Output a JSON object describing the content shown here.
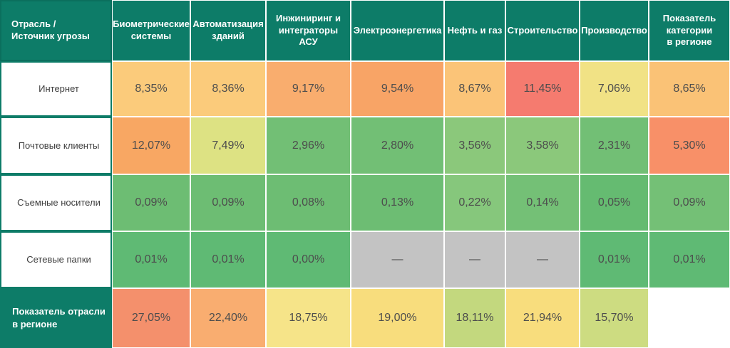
{
  "colors": {
    "header_bg": "#0D7C68",
    "header_text": "#FFFFFF",
    "grid_line": "#FFFFFF",
    "na_bg": "#C3C3C3",
    "label_text": "#3D3D3D",
    "value_text": "#4D4D4D"
  },
  "table": {
    "corner": "Отрасль /\nИсточник угрозы",
    "col_headers": [
      "Биометрические\nсистемы",
      "Автоматизация\nзданий",
      "Инжиниринг и\nинтеграторы АСУ",
      "Электроэнергетика",
      "Нефть и газ",
      "Строительство",
      "Производство",
      "Показатель\nкатегории\nв регионе"
    ],
    "rows": [
      {
        "label": "Интернет",
        "cells": [
          {
            "v": "8,35%",
            "bg": "#FBCB7B"
          },
          {
            "v": "8,36%",
            "bg": "#FBCB7B"
          },
          {
            "v": "9,17%",
            "bg": "#F9AD6E"
          },
          {
            "v": "9,54%",
            "bg": "#F8A466"
          },
          {
            "v": "8,67%",
            "bg": "#FBC478"
          },
          {
            "v": "11,45%",
            "bg": "#F57B6F"
          },
          {
            "v": "7,06%",
            "bg": "#F1E285"
          },
          {
            "v": "8,65%",
            "bg": "#FAC276"
          }
        ]
      },
      {
        "label": "Почтовые клиенты",
        "cells": [
          {
            "v": "12,07%",
            "bg": "#F8A763"
          },
          {
            "v": "7,49%",
            "bg": "#DDE283"
          },
          {
            "v": "2,96%",
            "bg": "#72BF75"
          },
          {
            "v": "2,80%",
            "bg": "#72BF75"
          },
          {
            "v": "3,56%",
            "bg": "#8BC87B"
          },
          {
            "v": "3,58%",
            "bg": "#8BC87B"
          },
          {
            "v": "2,31%",
            "bg": "#72BF75"
          },
          {
            "v": "5,30%",
            "bg": "#F89068"
          }
        ]
      },
      {
        "label": "Съемные носители",
        "cells": [
          {
            "v": "0,09%",
            "bg": "#6DBD73"
          },
          {
            "v": "0,09%",
            "bg": "#6DBD73"
          },
          {
            "v": "0,08%",
            "bg": "#6DBD73"
          },
          {
            "v": "0,13%",
            "bg": "#6DBD73"
          },
          {
            "v": "0,22%",
            "bg": "#86C77C"
          },
          {
            "v": "0,14%",
            "bg": "#74C076"
          },
          {
            "v": "0,05%",
            "bg": "#65BB71"
          },
          {
            "v": "0,09%",
            "bg": "#74C076"
          }
        ]
      },
      {
        "label": "Сетевые папки",
        "cells": [
          {
            "v": "0,01%",
            "bg": "#5FBA74"
          },
          {
            "v": "0,01%",
            "bg": "#5FBA74"
          },
          {
            "v": "0,00%",
            "bg": "#5FBA74"
          },
          {
            "v": "—",
            "bg": "#C3C3C3"
          },
          {
            "v": "—",
            "bg": "#C3C3C3"
          },
          {
            "v": "—",
            "bg": "#C3C3C3"
          },
          {
            "v": "0,01%",
            "bg": "#5FBA74"
          },
          {
            "v": "0,01%",
            "bg": "#5FBA74"
          }
        ]
      }
    ],
    "footer": {
      "label": "Показатель отрасли\nв регионе",
      "cells": [
        {
          "v": "27,05%",
          "bg": "#F4906C"
        },
        {
          "v": "22,40%",
          "bg": "#F9AD70"
        },
        {
          "v": "18,75%",
          "bg": "#F6E489"
        },
        {
          "v": "19,00%",
          "bg": "#F8DD7D"
        },
        {
          "v": "18,11%",
          "bg": "#C3D87E"
        },
        {
          "v": "21,94%",
          "bg": "#F8DD7D"
        },
        {
          "v": "15,70%",
          "bg": "#CDDC81"
        },
        {
          "v": "",
          "bg": "#FFFFFF"
        }
      ]
    }
  },
  "chart_data": {
    "type": "heatmap",
    "title": "",
    "corner_label": "Отрасль / Источник угрозы",
    "x_categories": [
      "Биометрические системы",
      "Автоматизация зданий",
      "Инжиниринг и интеграторы АСУ",
      "Электроэнергетика",
      "Нефть и газ",
      "Строительство",
      "Производство"
    ],
    "y_categories": [
      "Интернет",
      "Почтовые клиенты",
      "Съемные носители",
      "Сетевые папки"
    ],
    "values": [
      [
        8.35,
        8.36,
        9.17,
        9.54,
        8.67,
        11.45,
        7.06
      ],
      [
        12.07,
        7.49,
        2.96,
        2.8,
        3.56,
        3.58,
        2.31
      ],
      [
        0.09,
        0.09,
        0.08,
        0.13,
        0.22,
        0.14,
        0.05
      ],
      [
        0.01,
        0.01,
        0.0,
        null,
        null,
        null,
        0.01
      ]
    ],
    "row_summary_label": "Показатель категории в регионе",
    "row_summary": [
      8.65,
      5.3,
      0.09,
      0.01
    ],
    "col_summary_label": "Показатель отрасли в регионе",
    "col_summary": [
      27.05,
      22.4,
      18.75,
      19.0,
      18.11,
      21.94,
      15.7
    ],
    "unit": "%",
    "legend_position": "none",
    "grid": false
  }
}
